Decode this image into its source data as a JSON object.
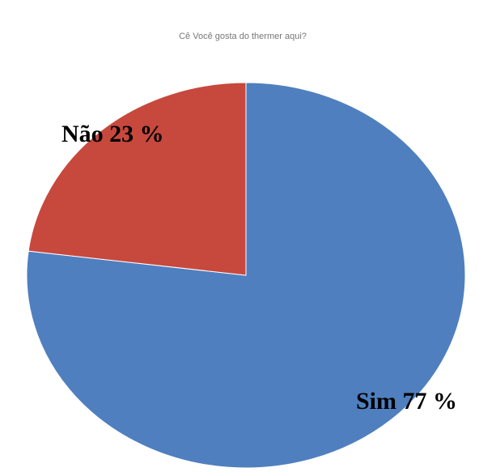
{
  "chart_data": {
    "type": "pie",
    "title": "Cê Você gosta do thermer aqui?",
    "categories": [
      "Sim",
      "Não"
    ],
    "values": [
      77,
      23
    ],
    "unit": "%",
    "labels": [
      "Sim 77 %",
      "Não 23 %"
    ],
    "colors": [
      "#4f7fbf",
      "#c7483d"
    ],
    "start_angle_deg": 0,
    "direction": "clockwise",
    "legend": "none"
  }
}
